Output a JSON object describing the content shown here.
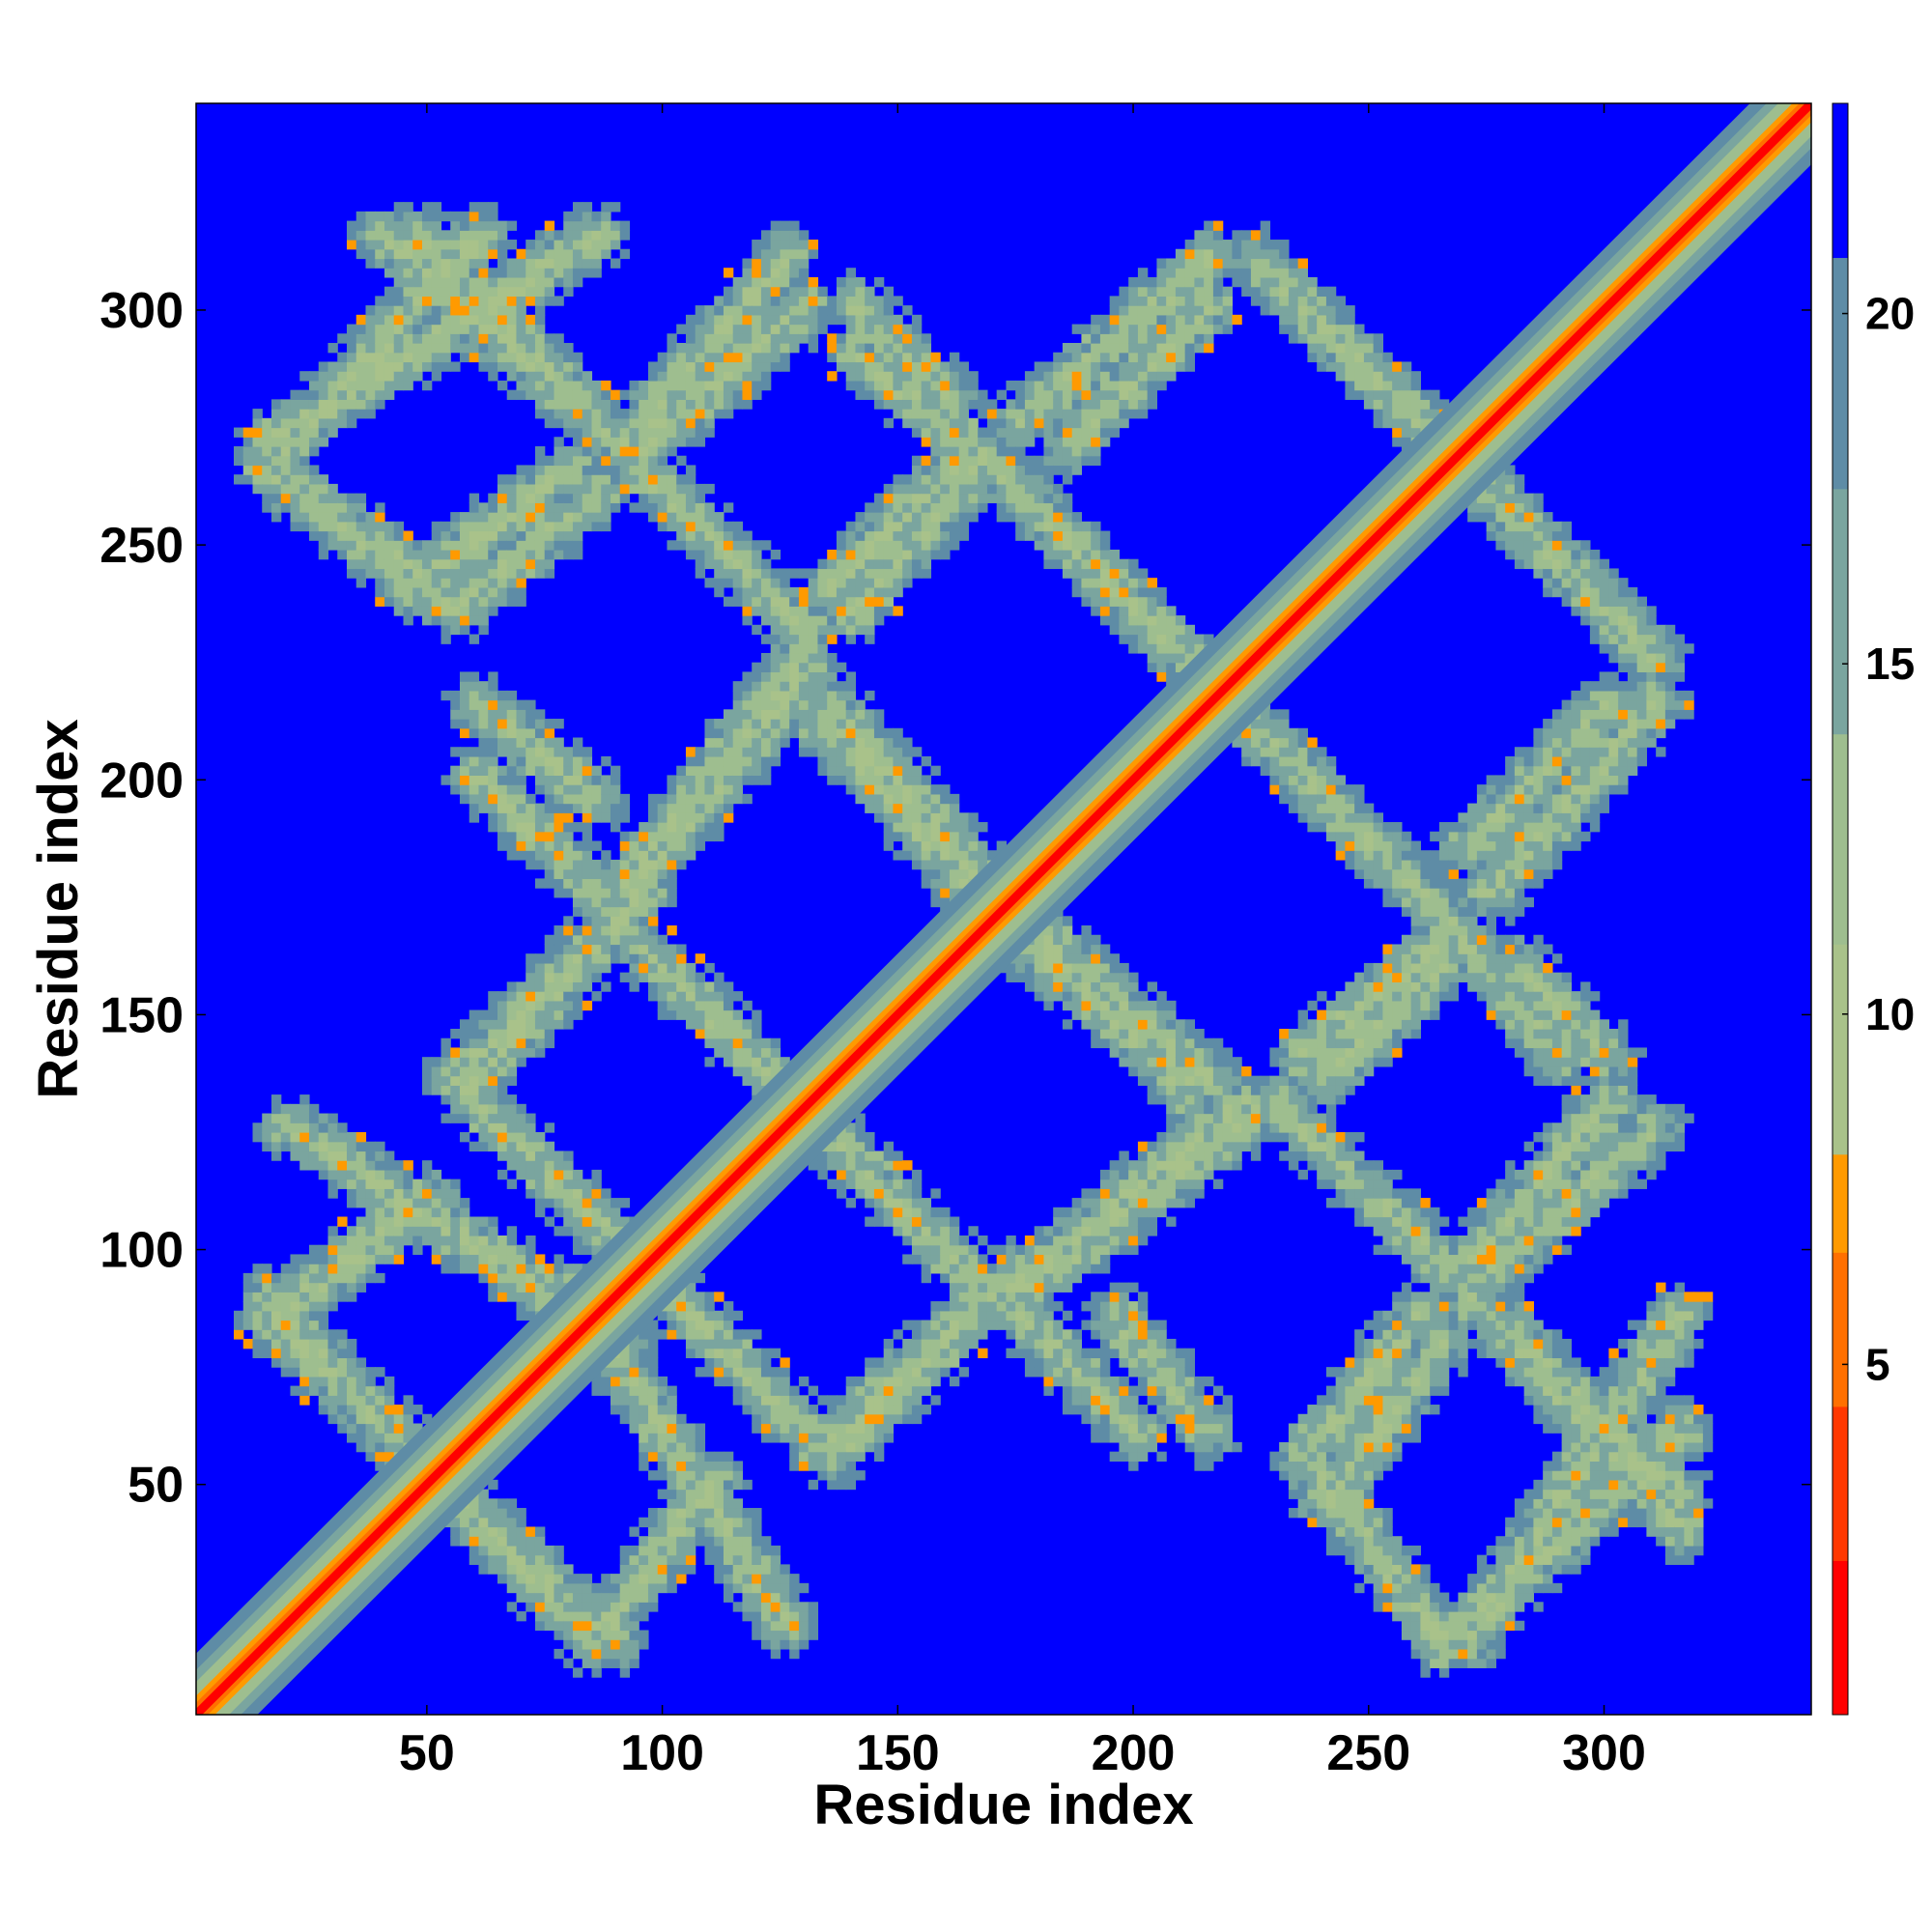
{
  "chart_data": {
    "type": "heatmap",
    "title": "",
    "xlabel": "Residue index",
    "ylabel": "Residue index",
    "xlim": [
      1,
      344
    ],
    "ylim": [
      1,
      344
    ],
    "x_ticks": [
      "50",
      "100",
      "150",
      "200",
      "250",
      "300"
    ],
    "y_ticks": [
      "50",
      "100",
      "150",
      "200",
      "250",
      "300"
    ],
    "tick_values": [
      50,
      100,
      150,
      200,
      250,
      300
    ],
    "grid": false,
    "description": "",
    "colorbar": {
      "min": 0,
      "max": 23,
      "ticks": [
        "5",
        "10",
        "15",
        "20"
      ],
      "tick_values": [
        5,
        10,
        15,
        20
      ],
      "levels": [
        {
          "from": 0,
          "to": 2.2,
          "color": "#ff0000"
        },
        {
          "from": 2.2,
          "to": 4.4,
          "color": "#ff3800"
        },
        {
          "from": 4.4,
          "to": 6.6,
          "color": "#ff7000"
        },
        {
          "from": 6.6,
          "to": 8.0,
          "color": "#ff9a00"
        },
        {
          "from": 8.0,
          "to": 11.0,
          "color": "#a9c28a"
        },
        {
          "from": 11.0,
          "to": 14.0,
          "color": "#9ebe8f"
        },
        {
          "from": 14.0,
          "to": 17.5,
          "color": "#7aa59f"
        },
        {
          "from": 17.5,
          "to": 20.8,
          "color": "#5e8ca6"
        },
        {
          "from": 20.8,
          "to": 23.0,
          "color": "#0000ff"
        }
      ]
    },
    "background_color": "#0000ff",
    "contact_bands": [
      {
        "comment": "",
        "x": [
          1,
          344
        ],
        "y": [
          1,
          344
        ],
        "kind": "diagonal"
      },
      {
        "x": [
          15,
          88
        ],
        "y": [
          85,
          15
        ],
        "kind": "anti"
      },
      {
        "x": [
          55,
          135
        ],
        "y": [
          135,
          55
        ],
        "kind": "anti"
      },
      {
        "x": [
          88,
          170
        ],
        "y": [
          170,
          88
        ],
        "kind": "anti"
      },
      {
        "x": [
          133,
          210
        ],
        "y": [
          212,
          133
        ],
        "kind": "anti"
      },
      {
        "x": [
          170,
          265
        ],
        "y": [
          265,
          170
        ],
        "kind": "anti"
      },
      {
        "x": [
          225,
          310
        ],
        "y": [
          310,
          225
        ],
        "kind": "anti"
      },
      {
        "x": [
          15,
          85
        ],
        "y": [
          270,
          315
        ],
        "kind": "parallel"
      },
      {
        "x": [
          47,
          90
        ],
        "y": [
          315,
          270
        ],
        "kind": "anti"
      },
      {
        "x": [
          95,
          130
        ],
        "y": [
          270,
          300
        ],
        "kind": "parallel"
      },
      {
        "x": [
          95,
          130
        ],
        "y": [
          265,
          230
        ],
        "kind": "anti"
      },
      {
        "x": [
          55,
          85
        ],
        "y": [
          235,
          260
        ],
        "kind": "parallel"
      },
      {
        "x": [
          15,
          55
        ],
        "y": [
          265,
          235
        ],
        "kind": "anti"
      },
      {
        "x": [
          88,
          130
        ],
        "y": [
          170,
          222
        ],
        "kind": "parallel"
      },
      {
        "x": [
          55,
          85
        ],
        "y": [
          135,
          165
        ],
        "kind": "parallel"
      },
      {
        "x": [
          60,
          85
        ],
        "y": [
          215,
          195
        ],
        "kind": "anti"
      },
      {
        "x": [
          135,
          170
        ],
        "y": [
          215,
          175
        ],
        "kind": "anti"
      },
      {
        "x": [
          175,
          205
        ],
        "y": [
          165,
          140
        ],
        "kind": "anti"
      },
      {
        "x": [
          175,
          225
        ],
        "y": [
          90,
          128
        ],
        "kind": "parallel"
      },
      {
        "x": [
          133,
          175
        ],
        "y": [
          57,
          95
        ],
        "kind": "parallel"
      },
      {
        "x": [
          20,
          90
        ],
        "y": [
          125,
          80
        ],
        "kind": "anti"
      },
      {
        "x": [
          88,
          110
        ],
        "y": [
          20,
          50
        ],
        "kind": "parallel"
      },
      {
        "x": [
          175,
          200
        ],
        "y": [
          85,
          60
        ],
        "kind": "anti"
      },
      {
        "x": [
          235,
          265
        ],
        "y": [
          125,
          95
        ],
        "kind": "anti"
      },
      {
        "x": [
          275,
          310
        ],
        "y": [
          95,
          125
        ],
        "kind": "parallel"
      },
      {
        "x": [
          240,
          265
        ],
        "y": [
          45,
          80
        ],
        "kind": "parallel"
      },
      {
        "x": [
          265,
          315
        ],
        "y": [
          15,
          60
        ],
        "kind": "parallel"
      },
      {
        "x": [
          275,
          315
        ],
        "y": [
          85,
          40
        ],
        "kind": "anti"
      },
      {
        "x": [
          240,
          265
        ],
        "y": [
          50,
          15
        ],
        "kind": "anti"
      },
      {
        "x": [
          275,
          310
        ],
        "y": [
          175,
          215
        ],
        "kind": "parallel"
      },
      {
        "x": [
          240,
          265
        ],
        "y": [
          135,
          160
        ],
        "kind": "parallel"
      },
      {
        "x": [
          280,
          300
        ],
        "y": [
          160,
          140
        ],
        "kind": "anti"
      },
      {
        "x": [
          185,
          215
        ],
        "y": [
          270,
          300
        ],
        "kind": "parallel"
      },
      {
        "x": [
          140,
          170
        ],
        "y": [
          290,
          265
        ],
        "kind": "anti"
      },
      {
        "x": [
          140,
          165
        ],
        "y": [
          235,
          265
        ],
        "kind": "parallel"
      }
    ]
  }
}
